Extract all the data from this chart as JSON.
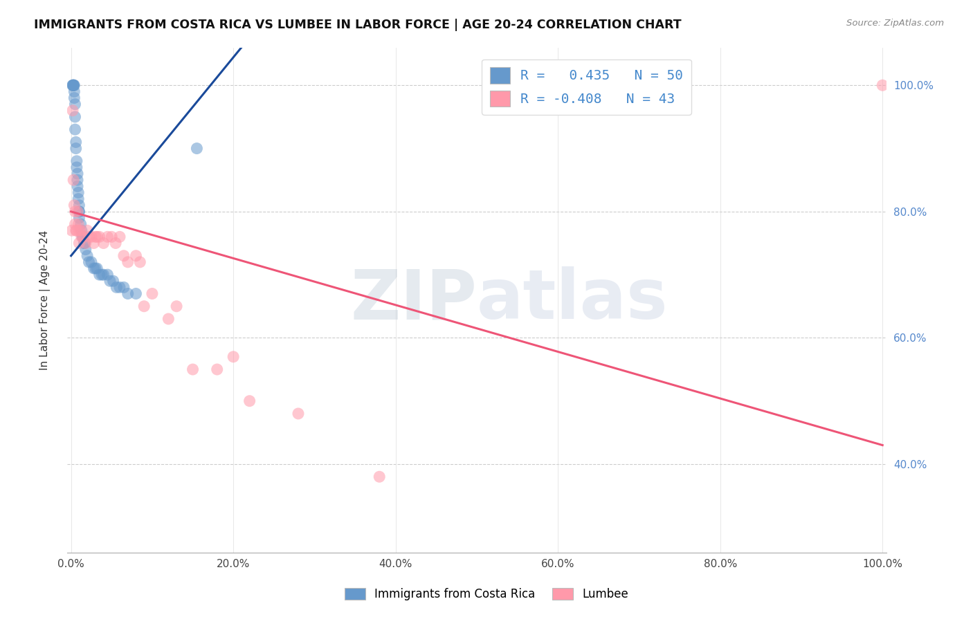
{
  "title": "IMMIGRANTS FROM COSTA RICA VS LUMBEE IN LABOR FORCE | AGE 20-24 CORRELATION CHART",
  "source": "Source: ZipAtlas.com",
  "ylabel": "In Labor Force | Age 20-24",
  "xlim": [
    -0.005,
    1.005
  ],
  "ylim": [
    0.26,
    1.06
  ],
  "x_tick_vals": [
    0.0,
    0.2,
    0.4,
    0.6,
    0.8,
    1.0
  ],
  "x_tick_labels": [
    "0.0%",
    "20.0%",
    "40.0%",
    "60.0%",
    "80.0%",
    "100.0%"
  ],
  "y_tick_vals": [
    0.4,
    0.6,
    0.8,
    1.0
  ],
  "y_tick_labels": [
    "40.0%",
    "60.0%",
    "80.0%",
    "100.0%"
  ],
  "watermark": "ZIPatlas",
  "legend_R1": " 0.435",
  "legend_N1": "50",
  "legend_R2": "-0.408",
  "legend_N2": "43",
  "blue_color": "#6699CC",
  "pink_color": "#FF99AA",
  "blue_line_color": "#1A4A9A",
  "pink_line_color": "#EE5577",
  "costa_rica_x": [
    0.002,
    0.002,
    0.003,
    0.003,
    0.003,
    0.003,
    0.004,
    0.004,
    0.004,
    0.005,
    0.005,
    0.005,
    0.006,
    0.006,
    0.007,
    0.007,
    0.008,
    0.008,
    0.008,
    0.009,
    0.009,
    0.01,
    0.01,
    0.01,
    0.01,
    0.012,
    0.013,
    0.014,
    0.015,
    0.016,
    0.017,
    0.018,
    0.02,
    0.022,
    0.025,
    0.028,
    0.03,
    0.032,
    0.035,
    0.038,
    0.04,
    0.045,
    0.048,
    0.052,
    0.056,
    0.06,
    0.065,
    0.07,
    0.08,
    0.155
  ],
  "costa_rica_y": [
    1.0,
    1.0,
    1.0,
    1.0,
    1.0,
    1.0,
    1.0,
    0.99,
    0.98,
    0.97,
    0.95,
    0.93,
    0.91,
    0.9,
    0.88,
    0.87,
    0.86,
    0.85,
    0.84,
    0.83,
    0.82,
    0.81,
    0.8,
    0.8,
    0.79,
    0.78,
    0.77,
    0.76,
    0.76,
    0.75,
    0.75,
    0.74,
    0.73,
    0.72,
    0.72,
    0.71,
    0.71,
    0.71,
    0.7,
    0.7,
    0.7,
    0.7,
    0.69,
    0.69,
    0.68,
    0.68,
    0.68,
    0.67,
    0.67,
    0.9
  ],
  "lumbee_x": [
    0.001,
    0.002,
    0.003,
    0.004,
    0.005,
    0.005,
    0.006,
    0.007,
    0.008,
    0.009,
    0.01,
    0.01,
    0.012,
    0.013,
    0.015,
    0.018,
    0.02,
    0.022,
    0.025,
    0.028,
    0.03,
    0.032,
    0.035,
    0.04,
    0.045,
    0.05,
    0.055,
    0.06,
    0.065,
    0.07,
    0.08,
    0.085,
    0.09,
    0.1,
    0.12,
    0.13,
    0.15,
    0.18,
    0.2,
    0.22,
    0.28,
    0.38,
    1.0
  ],
  "lumbee_y": [
    0.77,
    0.96,
    0.85,
    0.81,
    0.8,
    0.78,
    0.77,
    0.77,
    0.8,
    0.78,
    0.77,
    0.75,
    0.77,
    0.76,
    0.76,
    0.75,
    0.77,
    0.76,
    0.76,
    0.75,
    0.76,
    0.76,
    0.76,
    0.75,
    0.76,
    0.76,
    0.75,
    0.76,
    0.73,
    0.72,
    0.73,
    0.72,
    0.65,
    0.67,
    0.63,
    0.65,
    0.55,
    0.55,
    0.57,
    0.5,
    0.48,
    0.38,
    1.0
  ],
  "blue_trend_x": [
    0.0,
    0.21
  ],
  "blue_trend_y": [
    0.73,
    1.06
  ],
  "pink_trend_x": [
    0.0,
    1.0
  ],
  "pink_trend_y": [
    0.8,
    0.43
  ]
}
